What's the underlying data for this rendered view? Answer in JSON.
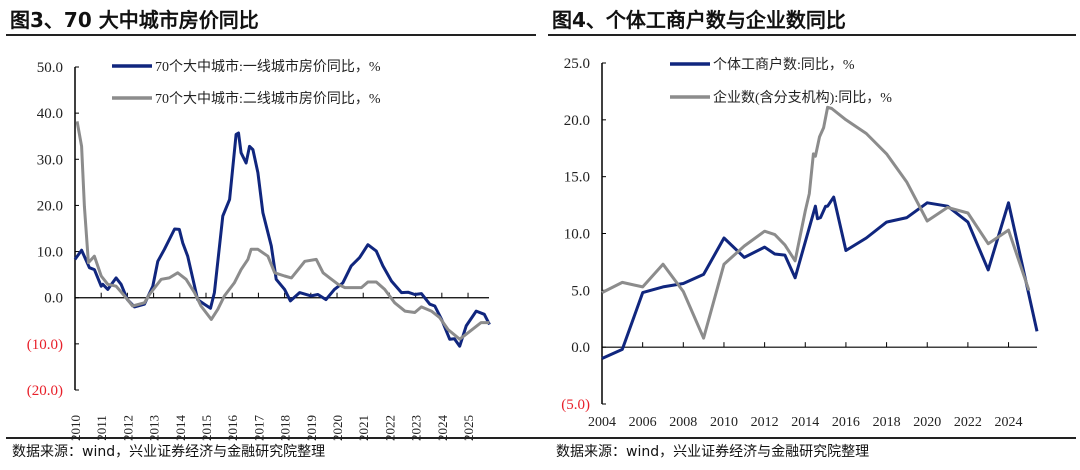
{
  "charts_meta": [
    {
      "title": "图3、70 大中城市房价同比",
      "source": "数据来源：wind，兴业证券经济与金融研究院整理"
    },
    {
      "title": "图4、个体工商户数与企业数同比",
      "source": "数据来源：wind，兴业证券经济与金融研究院整理"
    }
  ],
  "colors": {
    "series1": "#10267e",
    "series2": "#8c8c8c",
    "negative_tick": "#e8202a"
  },
  "chart_data": [
    {
      "type": "line",
      "title": "图3、70 大中城市房价同比",
      "ylim": [
        -20,
        50
      ],
      "yticks": [
        "50.0",
        "40.0",
        "30.0",
        "20.0",
        "10.0",
        "0.0",
        "(10.0)",
        "(20.0)"
      ],
      "ytick_values": [
        50,
        40,
        30,
        20,
        10,
        0,
        -10,
        -20
      ],
      "xlim": [
        2010,
        2025.8
      ],
      "xticks": [
        "2010",
        "2011",
        "2012",
        "2013",
        "2014",
        "2015",
        "2016",
        "2017",
        "2018",
        "2019",
        "2020",
        "2021",
        "2022",
        "2023",
        "2024",
        "2025"
      ],
      "grid": false,
      "legend": "top",
      "series": [
        {
          "name": "70个大中城市:一线城市房价同比，%",
          "points": [
            [
              2010,
              8.3
            ],
            [
              2010.25,
              10.3
            ],
            [
              2010.55,
              6.5
            ],
            [
              2010.74,
              6.1
            ],
            [
              2011,
              2.5
            ],
            [
              2011.06,
              2.9
            ],
            [
              2011.25,
              1.8
            ],
            [
              2011.57,
              4.3
            ],
            [
              2011.76,
              2.9
            ],
            [
              2012,
              -0.4
            ],
            [
              2012.27,
              -2
            ],
            [
              2012.65,
              -1.4
            ],
            [
              2012.97,
              2.5
            ],
            [
              2013.16,
              7.9
            ],
            [
              2013.41,
              10.5
            ],
            [
              2013.8,
              14.9
            ],
            [
              2013.98,
              14.8
            ],
            [
              2014.11,
              11.9
            ],
            [
              2014.3,
              9
            ],
            [
              2014.68,
              -0.4
            ],
            [
              2014.94,
              -1.4
            ],
            [
              2015.17,
              -2.3
            ],
            [
              2015.32,
              1.1
            ],
            [
              2015.64,
              17.7
            ],
            [
              2015.9,
              21.3
            ],
            [
              2016.15,
              35.4
            ],
            [
              2016.24,
              35.7
            ],
            [
              2016.34,
              31.4
            ],
            [
              2016.53,
              29.2
            ],
            [
              2016.66,
              32.8
            ],
            [
              2016.79,
              32.1
            ],
            [
              2016.98,
              27.1
            ],
            [
              2017.17,
              18.4
            ],
            [
              2017.49,
              11.2
            ],
            [
              2017.68,
              4
            ],
            [
              2018,
              1.8
            ],
            [
              2018.22,
              -0.7
            ],
            [
              2018.57,
              1.1
            ],
            [
              2019.01,
              0.4
            ],
            [
              2019.27,
              0.7
            ],
            [
              2019.58,
              -0.4
            ],
            [
              2019.9,
              1.8
            ],
            [
              2020.22,
              3.2
            ],
            [
              2020.54,
              6.9
            ],
            [
              2020.86,
              8.7
            ],
            [
              2021.18,
              11.5
            ],
            [
              2021.5,
              10.1
            ],
            [
              2021.75,
              6.9
            ],
            [
              2022.08,
              3.6
            ],
            [
              2022.46,
              1.1
            ],
            [
              2022.71,
              1.2
            ],
            [
              2022.97,
              0.7
            ],
            [
              2023.22,
              0.9
            ],
            [
              2023.54,
              -1.4
            ],
            [
              2023.73,
              -1.8
            ],
            [
              2023.99,
              -4.7
            ],
            [
              2024.3,
              -9
            ],
            [
              2024.48,
              -8.9
            ],
            [
              2024.68,
              -10.5
            ],
            [
              2024.93,
              -6.1
            ],
            [
              2025.31,
              -2.9
            ],
            [
              2025.62,
              -3.6
            ],
            [
              2025.82,
              -5.8
            ]
          ]
        },
        {
          "name": "70个大中城市:二线城市房价同比，%",
          "points": [
            [
              2010.08,
              38.2
            ],
            [
              2010.25,
              32.8
            ],
            [
              2010.36,
              19.8
            ],
            [
              2010.51,
              7.6
            ],
            [
              2010.74,
              9
            ],
            [
              2011,
              4.7
            ],
            [
              2011.25,
              2.9
            ],
            [
              2011.57,
              2.5
            ],
            [
              2011.89,
              0.4
            ],
            [
              2012.2,
              -1.8
            ],
            [
              2012.65,
              -1.1
            ],
            [
              2012.84,
              0.7
            ],
            [
              2013.29,
              4
            ],
            [
              2013.6,
              4.3
            ],
            [
              2013.92,
              5.4
            ],
            [
              2014.24,
              4
            ],
            [
              2014.56,
              1.1
            ],
            [
              2014.81,
              -1.8
            ],
            [
              2015.2,
              -4.7
            ],
            [
              2015.45,
              -2.5
            ],
            [
              2015.7,
              0.4
            ],
            [
              2016.08,
              3.2
            ],
            [
              2016.34,
              6.1
            ],
            [
              2016.6,
              8.3
            ],
            [
              2016.72,
              10.5
            ],
            [
              2016.98,
              10.5
            ],
            [
              2017.36,
              9
            ],
            [
              2017.62,
              5.4
            ],
            [
              2018,
              4.7
            ],
            [
              2018.26,
              4.3
            ],
            [
              2018.52,
              6.1
            ],
            [
              2018.77,
              7.9
            ],
            [
              2019.21,
              8.3
            ],
            [
              2019.47,
              5.4
            ],
            [
              2019.72,
              4.3
            ],
            [
              2020.04,
              2.9
            ],
            [
              2020.3,
              2.2
            ],
            [
              2020.93,
              2.2
            ],
            [
              2021.18,
              3.4
            ],
            [
              2021.5,
              3.4
            ],
            [
              2021.82,
              1.8
            ],
            [
              2022.2,
              -1.1
            ],
            [
              2022.59,
              -2.9
            ],
            [
              2022.97,
              -3.2
            ],
            [
              2023.22,
              -2
            ],
            [
              2023.6,
              -2.9
            ],
            [
              2023.92,
              -4.3
            ],
            [
              2024.24,
              -6.9
            ],
            [
              2024.68,
              -9
            ],
            [
              2025,
              -7.6
            ],
            [
              2025.5,
              -5.4
            ],
            [
              2025.82,
              -5.4
            ]
          ]
        }
      ]
    },
    {
      "type": "line",
      "title": "图4、个体工商户数与企业数同比",
      "ylim": [
        -5,
        25
      ],
      "yticks": [
        "25.0",
        "20.0",
        "15.0",
        "10.0",
        "5.0",
        "0.0",
        "(5.0)"
      ],
      "ytick_values": [
        25,
        20,
        15,
        10,
        5,
        0,
        -5
      ],
      "xlim": [
        2004,
        2025.4
      ],
      "xticks": [
        "2004",
        "2006",
        "2008",
        "2010",
        "2012",
        "2014",
        "2016",
        "2018",
        "2020",
        "2022",
        "2024"
      ],
      "grid": false,
      "legend": "top",
      "series": [
        {
          "name": "个体工商户数:同比，%",
          "points": [
            [
              2004,
              -1
            ],
            [
              2005,
              -0.2
            ],
            [
              2006,
              4.8
            ],
            [
              2007,
              5.3
            ],
            [
              2008,
              5.6
            ],
            [
              2009,
              6.4
            ],
            [
              2010,
              9.6
            ],
            [
              2011,
              7.9
            ],
            [
              2012,
              8.8
            ],
            [
              2012.5,
              8.2
            ],
            [
              2013,
              8.1
            ],
            [
              2013.5,
              6.1
            ],
            [
              2014.5,
              12.4
            ],
            [
              2014.6,
              11.3
            ],
            [
              2014.75,
              11.4
            ],
            [
              2015,
              12.4
            ],
            [
              2015.1,
              12.4
            ],
            [
              2015.4,
              13.2
            ],
            [
              2016,
              8.5
            ],
            [
              2017,
              9.6
            ],
            [
              2018,
              11
            ],
            [
              2019,
              11.4
            ],
            [
              2020,
              12.7
            ],
            [
              2021,
              12.4
            ],
            [
              2022,
              11
            ],
            [
              2023,
              6.8
            ],
            [
              2024,
              12.7
            ],
            [
              2025.4,
              1.4
            ]
          ]
        },
        {
          "name": "企业数(含分支机构):同比，%",
          "points": [
            [
              2004,
              4.8
            ],
            [
              2005,
              5.7
            ],
            [
              2006,
              5.3
            ],
            [
              2007,
              7.3
            ],
            [
              2008,
              4.9
            ],
            [
              2009,
              0.8
            ],
            [
              2010,
              7.3
            ],
            [
              2011,
              8.9
            ],
            [
              2012,
              10.2
            ],
            [
              2012.5,
              9.9
            ],
            [
              2013,
              9
            ],
            [
              2013.5,
              7.6
            ],
            [
              2014,
              12
            ],
            [
              2014.2,
              13.5
            ],
            [
              2014.4,
              17
            ],
            [
              2014.5,
              16.8
            ],
            [
              2014.7,
              18.5
            ],
            [
              2014.9,
              19.3
            ],
            [
              2015.1,
              21.1
            ],
            [
              2015.3,
              21
            ],
            [
              2016,
              20
            ],
            [
              2017,
              18.8
            ],
            [
              2018,
              17
            ],
            [
              2019,
              14.5
            ],
            [
              2020,
              11.1
            ],
            [
              2021,
              12.3
            ],
            [
              2022,
              11.8
            ],
            [
              2023,
              9.1
            ],
            [
              2024,
              10.3
            ],
            [
              2025,
              5
            ]
          ]
        }
      ]
    }
  ]
}
